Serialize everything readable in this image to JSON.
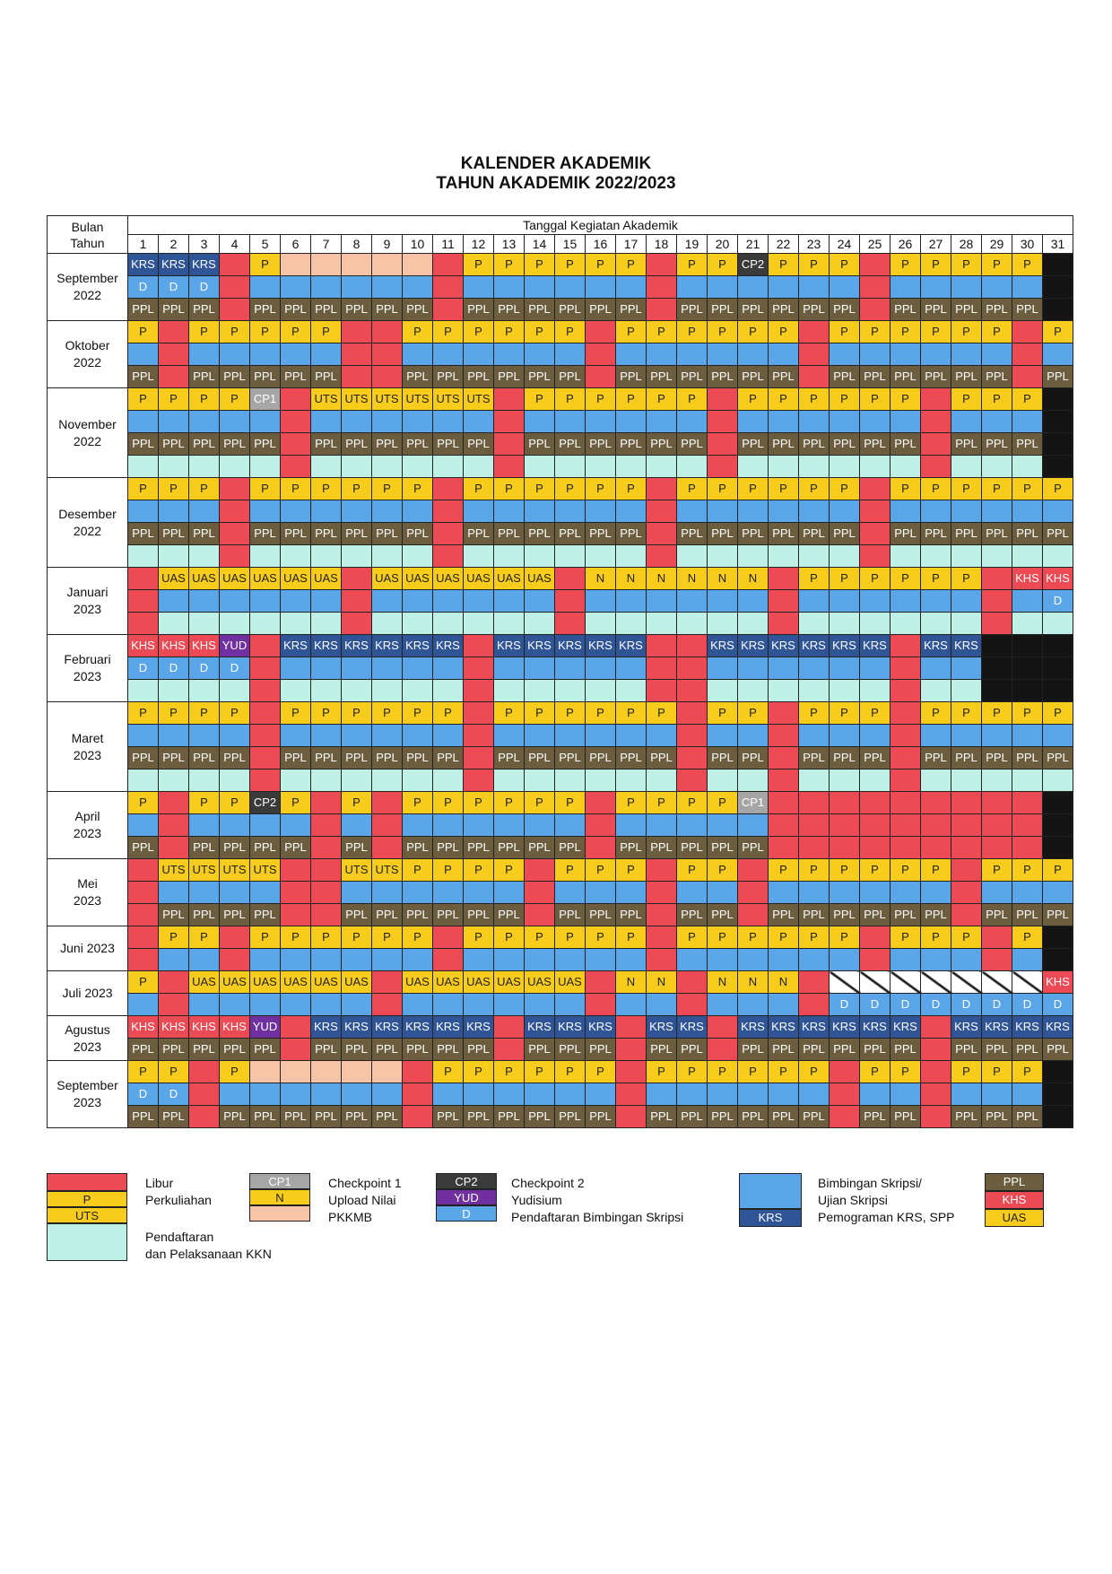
{
  "title": {
    "line1": "KALENDER AKADEMIK",
    "line2": "TAHUN AKADEMIK 2022/2023"
  },
  "header": {
    "col_month_line1": "Bulan",
    "col_month_line2": "Tahun",
    "col_dates": "Tanggal Kegiatan Akademik"
  },
  "days": [
    "1",
    "2",
    "3",
    "4",
    "5",
    "6",
    "7",
    "8",
    "9",
    "10",
    "11",
    "12",
    "13",
    "14",
    "15",
    "16",
    "17",
    "18",
    "19",
    "20",
    "21",
    "22",
    "23",
    "24",
    "25",
    "26",
    "27",
    "28",
    "29",
    "30",
    "31"
  ],
  "months": [
    {
      "name": "September",
      "year": "2022",
      "rows": [
        "KRS KRS KRS R P pk pk pk pk pk R P P P P P P R P P CP2 P P P R P P P P P k",
        "D D D R e e e e e e R e e e e e e R e e e e e e R e e e e e k",
        "PPL PPL PPL R PPL PPL PPL PPL PPL PPL R PPL PPL PPL PPL PPL PPL R PPL PPL PPL PPL PPL PPL R PPL PPL PPL PPL PPL k"
      ]
    },
    {
      "name": "Oktober",
      "year": "2022",
      "rows": [
        "P R P P P P P R R P P P P P P R P P P P P P R P P P P P P R P",
        "e R e e e e e R R e e e e e e R e e e e e e R e e e e e e R e",
        "PPL R PPL PPL PPL PPL PPL R R PPL PPL PPL PPL PPL PPL R PPL PPL PPL PPL PPL PPL R PPL PPL PPL PPL PPL PPL R PPL"
      ]
    },
    {
      "name": "November",
      "year": "2022",
      "rows": [
        "P P P P CP1 R UTS UTS UTS UTS UTS UTS R P P P P P P R P P P P P P R P P P k",
        "e e e e e R e e e e e e R e e e e e e R e e e e e e R e e e k",
        "PPL PPL PPL PPL PPL R PPL PPL PPL PPL PPL PPL R PPL PPL PPL PPL PPL PPL R PPL PPL PPL PPL PPL PPL R PPL PPL PPL k",
        "q q q q q R q q q q q q R q q q q q q R q q q q q q R q q q k"
      ]
    },
    {
      "name": "Desember",
      "year": "2022",
      "rows": [
        "P P P R P P P P P P R P P P P P P R P P P P P P R P P P P P P",
        "e e e R e e e e e e R e e e e e e R e e e e e e R e e e e e e",
        "PPL PPL PPL R PPL PPL PPL PPL PPL PPL R PPL PPL PPL PPL PPL PPL R PPL PPL PPL PPL PPL PPL R PPL PPL PPL PPL PPL PPL",
        "q q q R q q q q q q R q q q q q q R q q q q q q R q q q q q q"
      ]
    },
    {
      "name": "Januari",
      "year": "2023",
      "rows": [
        "R UAS UAS UAS UAS UAS UAS R UAS UAS UAS UAS UAS UAS R N N N N N N R P P P P P P R KHS KHS",
        "R e e e e e e R e e e e e e R e e e e e e R e e e e e e R e D",
        "R q q q q q q R q q q q q q R q q q q q q R q q q q q q R q q"
      ]
    },
    {
      "name": "Februari",
      "year": "2023",
      "rows": [
        "KHS KHS KHS YUD R KRS KRS KRS KRS KRS KRS R KRS KRS KRS KRS KRS R R KRS KRS KRS KRS KRS KRS R KRS KRS k k k",
        "D D D D R e e e e e e R e e e e e R R e e e e e e R e e k k k",
        "q q q q R q q q q q q R q q q q q R R q q q q q q R q q k k k"
      ]
    },
    {
      "name": "Maret",
      "year": "2023",
      "rows": [
        "P P P P R P P P P P P R P P P P P P R P P R P P P R P P P P P",
        "e e e e R e e e e e e R e e e e e e R e e R e e e R e e e e e",
        "PPL PPL PPL PPL R PPL PPL PPL PPL PPL PPL R PPL PPL PPL PPL PPL PPL R PPL PPL R PPL PPL PPL R PPL PPL PPL PPL PPL",
        "q q q q R q q q q q q R q q q q q q R q q R q q q R q q q q q"
      ]
    },
    {
      "name": "April",
      "year": "2023",
      "rows": [
        "P R P P CP2 P R P R P P P P P P R P P P P CP1 R R R R R R R R R k",
        "e R e e e e R e R e e e e e e R e e e e e R R R R R R R R R k",
        "PPL R PPL PPL PPL PPL R PPL R PPL PPL PPL PPL PPL PPL R PPL PPL PPL PPL PPL R R R R R R R R R k"
      ]
    },
    {
      "name": "Mei",
      "year": "2023",
      "rows": [
        "R UTS UTS UTS UTS R R UTS UTS P P P P R P P P R P P R P P P P P P R P P P",
        "R e e e e R R e e e e e e R e e e R e e R e e e e e e R e e e",
        "R PPL PPL PPL PPL R R PPL PPL PPL PPL PPL PPL R PPL PPL PPL R PPL PPL R PPL PPL PPL PPL PPL PPL R PPL PPL PPL"
      ]
    },
    {
      "name": "Juni 2023",
      "year": "",
      "rows": [
        "R P P R P P P P P P R P P P P P P R P P P P P P R P P P R P k",
        "R e e R e e e e e e R e e e e e e R e e e e e e R e e e R e k"
      ]
    },
    {
      "name": "Juli 2023",
      "year": "",
      "rows": [
        "P R UAS UAS UAS UAS UAS UAS R UAS UAS UAS UAS UAS UAS R N N R N N N R S S S S S S S KHS",
        "e R e e e e e e R e e e e e e R e e R e e e R D D D D D D D D"
      ]
    },
    {
      "name": "Agustus",
      "year": "2023",
      "rows": [
        "KHS KHS KHS KHS YUD R KRS KRS KRS KRS KRS KRS R KRS KRS KRS R KRS KRS R KRS KRS KRS KRS KRS KRS R KRS KRS KRS KRS",
        "PPL PPL PPL PPL PPL R PPL PPL PPL PPL PPL PPL R PPL PPL PPL R PPL PPL R PPL PPL PPL PPL PPL PPL R PPL PPL PPL PPL"
      ]
    },
    {
      "name": "September",
      "year": "2023",
      "rows": [
        "P P R P pk pk pk pk pk R P P P P P P R P P P P P P R P P R P P P k",
        "D D R e e e e e e R e e e e e e R e e e e e e R e e R e e e k",
        "PPL PPL R PPL PPL PPL PPL PPL PPL R PPL PPL PPL PPL PPL PPL R PPL PPL PPL PPL PPL PPL R PPL PPL R PPL PPL PPL k"
      ]
    }
  ],
  "legend": {
    "swatch_p": "P",
    "swatch_uts": "UTS",
    "libur_line1": "Libur",
    "libur_line2": "Perkuliahan",
    "kkn_line1": "Pendaftaran",
    "kkn_line2": "dan Pelaksanaan KKN",
    "swatch_cp1": "CP1",
    "swatch_n": "N",
    "cp1_line1": "Checkpoint 1",
    "cp1_line2": "Upload Nilai",
    "cp1_line3": "PKKMB",
    "swatch_cp2": "CP2",
    "swatch_yud": "YUD",
    "swatch_d": "D",
    "cp2_line1": "Checkpoint 2",
    "cp2_line2": "Yudisium",
    "cp2_line3": "Pendaftaran Bimbingan Skripsi",
    "swatch_krs": "KRS",
    "bim_line1": "Bimbingan Skripsi/",
    "bim_line2": "Ujian Skripsi",
    "bim_line3": "Pemograman KRS, SPP",
    "swatch_ppl": "PPL",
    "swatch_khs": "KHS",
    "swatch_uas": "UAS"
  }
}
